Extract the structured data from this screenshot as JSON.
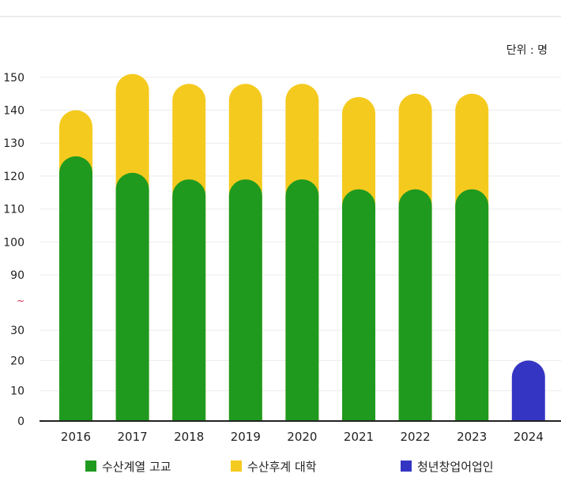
{
  "chart_data": {
    "type": "bar",
    "stacked": true,
    "unit_label": "단위 : 명",
    "categories": [
      "2016",
      "2017",
      "2018",
      "2019",
      "2020",
      "2021",
      "2022",
      "2023",
      "2024"
    ],
    "series": [
      {
        "name": "수산계열 고교",
        "color": "#1f9a1f",
        "values": [
          126,
          121,
          119,
          119,
          119,
          116,
          116,
          116,
          0
        ]
      },
      {
        "name": "수산후계 대학",
        "color": "#f5ca1e",
        "values": [
          14,
          30,
          29,
          29,
          29,
          28,
          29,
          29,
          0
        ]
      },
      {
        "name": "청년창업어업인",
        "color": "#3535c4",
        "values": [
          0,
          0,
          0,
          0,
          0,
          0,
          0,
          0,
          20
        ]
      }
    ],
    "y_ticks": [
      "150",
      "140",
      "130",
      "120",
      "110",
      "100",
      "90",
      "~",
      "30",
      "20",
      "10",
      "0"
    ],
    "y_axis_break": {
      "lower_max": 30,
      "upper_min": 90,
      "symbol": "~"
    },
    "ylim": [
      0,
      150
    ],
    "grid": true,
    "legend_position": "bottom"
  }
}
